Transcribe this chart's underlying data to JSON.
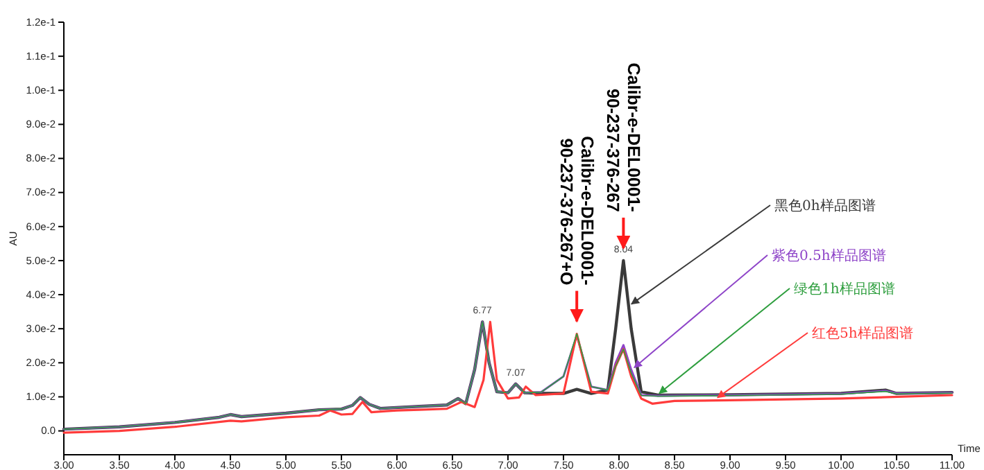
{
  "chart_data": {
    "type": "line",
    "xlabel": "Time",
    "ylabel": "AU",
    "xlim": [
      3,
      11
    ],
    "ylim": [
      -0.007,
      0.12
    ],
    "xticks": [
      {
        "value": 3,
        "label": "3.00"
      },
      {
        "value": 3.5,
        "label": "3.50"
      },
      {
        "value": 4,
        "label": "4.00"
      },
      {
        "value": 4.5,
        "label": "4.50"
      },
      {
        "value": 5,
        "label": "5.00"
      },
      {
        "value": 5.5,
        "label": "5.50"
      },
      {
        "value": 6,
        "label": "6.00"
      },
      {
        "value": 6.5,
        "label": "6.50"
      },
      {
        "value": 7,
        "label": "7.00"
      },
      {
        "value": 7.5,
        "label": "7.50"
      },
      {
        "value": 8,
        "label": "8.00"
      },
      {
        "value": 8.5,
        "label": "8.50"
      },
      {
        "value": 9,
        "label": "9.00"
      },
      {
        "value": 9.5,
        "label": "9.50"
      },
      {
        "value": 10,
        "label": "10.00"
      },
      {
        "value": 10.5,
        "label": "10.50"
      },
      {
        "value": 11,
        "label": "11.00"
      }
    ],
    "yticks": [
      {
        "value": 0,
        "label": "0.0"
      },
      {
        "value": 0.01,
        "label": "1.0e-2"
      },
      {
        "value": 0.02,
        "label": "2.0e-2"
      },
      {
        "value": 0.03,
        "label": "3.0e-2"
      },
      {
        "value": 0.04,
        "label": "4.0e-2"
      },
      {
        "value": 0.05,
        "label": "5.0e-2"
      },
      {
        "value": 0.06,
        "label": "6.0e-2"
      },
      {
        "value": 0.07,
        "label": "7.0e-2"
      },
      {
        "value": 0.08,
        "label": "8.0e-2"
      },
      {
        "value": 0.09,
        "label": "9.0e-2"
      },
      {
        "value": 0.1,
        "label": "1.0e-1"
      },
      {
        "value": 0.11,
        "label": "1.1e-1"
      },
      {
        "value": 0.12,
        "label": "1.2e-1"
      }
    ],
    "grid": false,
    "legend": false,
    "marker": "none",
    "line_style": "solid",
    "series": [
      {
        "name": "黑色0h样品图谱",
        "color": "#3a3a3a",
        "x": [
          3.0,
          3.5,
          4.0,
          4.4,
          4.5,
          4.6,
          5.0,
          5.3,
          5.5,
          5.6,
          5.67,
          5.75,
          5.85,
          6.2,
          6.45,
          6.55,
          6.62,
          6.7,
          6.77,
          6.83,
          6.9,
          7.0,
          7.07,
          7.15,
          7.3,
          7.5,
          7.62,
          7.75,
          7.9,
          7.97,
          8.04,
          8.11,
          8.2,
          8.35,
          9.0,
          9.5,
          10.0,
          10.4,
          10.5,
          11.0
        ],
        "values": [
          0.0005,
          0.0012,
          0.0025,
          0.004,
          0.0048,
          0.0042,
          0.0052,
          0.0062,
          0.0064,
          0.0075,
          0.0098,
          0.0078,
          0.0066,
          0.0072,
          0.0076,
          0.0095,
          0.008,
          0.018,
          0.032,
          0.02,
          0.0115,
          0.0112,
          0.0138,
          0.0112,
          0.011,
          0.011,
          0.0122,
          0.011,
          0.012,
          0.03,
          0.05,
          0.03,
          0.0115,
          0.0105,
          0.0106,
          0.0108,
          0.011,
          0.012,
          0.011,
          0.0113
        ]
      },
      {
        "name": "紫色0.5h样品图谱",
        "color": "#8e44c8",
        "x": [
          3.0,
          3.5,
          4.0,
          4.4,
          4.5,
          4.6,
          5.0,
          5.3,
          5.5,
          5.6,
          5.67,
          5.75,
          5.85,
          6.2,
          6.45,
          6.55,
          6.62,
          6.7,
          6.77,
          6.83,
          6.9,
          7.0,
          7.07,
          7.15,
          7.3,
          7.5,
          7.62,
          7.75,
          7.9,
          7.97,
          8.04,
          8.11,
          8.2,
          8.35,
          9.0,
          9.5,
          10.0,
          10.4,
          10.5,
          11.0
        ],
        "values": [
          0.0005,
          0.0012,
          0.0025,
          0.004,
          0.0048,
          0.0042,
          0.0052,
          0.0062,
          0.0064,
          0.0075,
          0.0098,
          0.0078,
          0.0066,
          0.0072,
          0.0076,
          0.0095,
          0.008,
          0.018,
          0.032,
          0.02,
          0.0115,
          0.0112,
          0.0138,
          0.0112,
          0.0114,
          0.016,
          0.028,
          0.013,
          0.012,
          0.02,
          0.0252,
          0.018,
          0.0105,
          0.0103,
          0.0105,
          0.0107,
          0.0109,
          0.0118,
          0.011,
          0.0112
        ]
      },
      {
        "name": "绿色1h样品图谱",
        "color": "#2e9e3e",
        "x": [
          3.0,
          3.5,
          4.0,
          4.4,
          4.5,
          4.6,
          5.0,
          5.3,
          5.5,
          5.6,
          5.67,
          5.75,
          5.85,
          6.2,
          6.45,
          6.55,
          6.62,
          6.7,
          6.77,
          6.83,
          6.9,
          7.0,
          7.07,
          7.15,
          7.3,
          7.5,
          7.62,
          7.75,
          7.9,
          7.97,
          8.04,
          8.11,
          8.2,
          8.35,
          9.0,
          9.5,
          10.0,
          10.4,
          10.5,
          11.0
        ],
        "values": [
          0.0005,
          0.0012,
          0.0025,
          0.004,
          0.0048,
          0.0042,
          0.0052,
          0.0062,
          0.0064,
          0.0075,
          0.0098,
          0.0078,
          0.0066,
          0.0072,
          0.0076,
          0.0095,
          0.008,
          0.018,
          0.032,
          0.02,
          0.0115,
          0.0112,
          0.0138,
          0.0112,
          0.0114,
          0.016,
          0.0285,
          0.013,
          0.012,
          0.019,
          0.024,
          0.017,
          0.0104,
          0.0102,
          0.0104,
          0.0106,
          0.0108,
          0.0116,
          0.0109,
          0.0111
        ]
      },
      {
        "name": "红色5h样品图谱",
        "color": "#ff3b3b",
        "x": [
          3.0,
          3.5,
          4.0,
          4.5,
          4.6,
          5.0,
          5.3,
          5.4,
          5.5,
          5.6,
          5.69,
          5.77,
          5.9,
          6.0,
          6.2,
          6.45,
          6.58,
          6.7,
          6.78,
          6.84,
          6.9,
          7.0,
          7.1,
          7.16,
          7.25,
          7.5,
          7.62,
          7.75,
          7.9,
          7.97,
          8.04,
          8.11,
          8.2,
          8.3,
          8.5,
          9.0,
          10.0,
          11.0
        ],
        "values": [
          -0.0005,
          0.0,
          0.0012,
          0.003,
          0.0028,
          0.004,
          0.0045,
          0.006,
          0.0048,
          0.005,
          0.0085,
          0.0055,
          0.0058,
          0.006,
          0.0062,
          0.0065,
          0.0085,
          0.007,
          0.015,
          0.032,
          0.015,
          0.0095,
          0.0098,
          0.013,
          0.0105,
          0.011,
          0.0285,
          0.0115,
          0.011,
          0.019,
          0.024,
          0.016,
          0.0095,
          0.008,
          0.0088,
          0.009,
          0.0095,
          0.0105
        ]
      }
    ],
    "annotations": [
      {
        "text": "6.77",
        "x": 6.77,
        "y": 0.032
      },
      {
        "text": "7.07",
        "x": 7.07,
        "y": 0.0138
      },
      {
        "text": "8.04",
        "x": 8.04,
        "y": 0.05
      },
      {
        "text": "Calibr-e-DEL0001-\n90-237-376-267",
        "x": 8.04,
        "y": 0.05
      },
      {
        "text": "Calibr-e-DEL0001-\n90-237-376-267+O",
        "x": 7.62,
        "y": 0.0285
      }
    ]
  }
}
